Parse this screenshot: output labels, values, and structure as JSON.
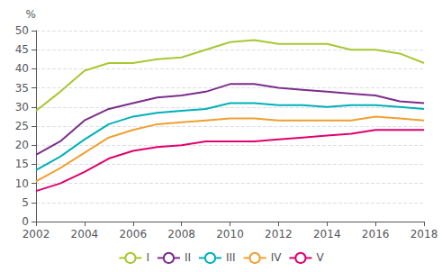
{
  "chart_data": {
    "type": "line",
    "x": [
      2002,
      2003,
      2004,
      2005,
      2006,
      2007,
      2008,
      2009,
      2010,
      2011,
      2012,
      2013,
      2014,
      2015,
      2016,
      2017,
      2018
    ],
    "series": [
      {
        "name": "I",
        "color": "#a8c832",
        "values": [
          29.0,
          34.0,
          39.5,
          41.5,
          41.5,
          42.5,
          43.0,
          45.0,
          47.0,
          47.5,
          46.5,
          46.5,
          46.5,
          45.0,
          45.0,
          44.0,
          41.5
        ]
      },
      {
        "name": "II",
        "color": "#7b2d8b",
        "values": [
          17.5,
          21.0,
          26.5,
          29.5,
          31.0,
          32.5,
          33.0,
          34.0,
          36.0,
          36.0,
          35.0,
          34.5,
          34.0,
          33.5,
          33.0,
          31.5,
          31.0
        ]
      },
      {
        "name": "III",
        "color": "#00b0b9",
        "values": [
          13.5,
          17.0,
          21.5,
          25.5,
          27.5,
          28.5,
          29.0,
          29.5,
          31.0,
          31.0,
          30.5,
          30.5,
          30.0,
          30.5,
          30.5,
          30.0,
          29.5
        ]
      },
      {
        "name": "IV",
        "color": "#f0a030",
        "values": [
          10.5,
          14.0,
          18.0,
          22.0,
          24.0,
          25.5,
          26.0,
          26.5,
          27.0,
          27.0,
          26.5,
          26.5,
          26.5,
          26.5,
          27.5,
          27.0,
          26.5
        ]
      },
      {
        "name": "V",
        "color": "#e0006e",
        "values": [
          8.0,
          10.0,
          13.0,
          16.5,
          18.5,
          19.5,
          20.0,
          21.0,
          21.0,
          21.0,
          21.5,
          22.0,
          22.5,
          23.0,
          24.0,
          24.0,
          24.0
        ]
      }
    ],
    "xlim": [
      2002,
      2018
    ],
    "xticks": [
      2002,
      2004,
      2006,
      2008,
      2010,
      2012,
      2014,
      2016,
      2018
    ],
    "ylim": [
      0,
      50
    ],
    "yticks": [
      0,
      5,
      10,
      15,
      20,
      25,
      30,
      35,
      40,
      45,
      50
    ],
    "ylabel": "%",
    "grid": true,
    "legend": "bottom"
  }
}
